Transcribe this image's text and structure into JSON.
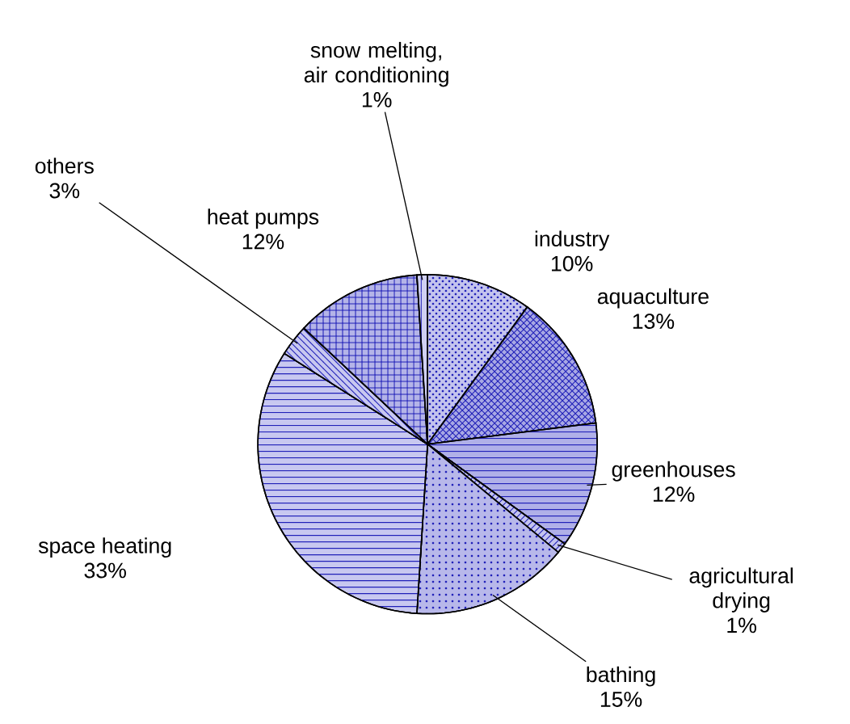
{
  "chart_data": {
    "type": "pie",
    "categories": [
      "industry",
      "aquaculture",
      "greenhouses",
      "agricultural drying",
      "bathing",
      "space heating",
      "others",
      "heat pumps",
      "snow melting, air conditioning"
    ],
    "values": [
      10,
      13,
      12,
      1,
      15,
      33,
      3,
      12,
      1
    ],
    "value_labels": [
      "10%",
      "13%",
      "12%",
      "1%",
      "15%",
      "33%",
      "3%",
      "12%",
      "1%"
    ],
    "colors": [
      "#c4c4ee",
      "#a8a8e4",
      "#b0b0e8",
      "#c4c4ee",
      "#b8b8ea",
      "#c8c8f0",
      "#c8c8f0",
      "#b4b4e8",
      "#d0d0f2"
    ]
  }
}
